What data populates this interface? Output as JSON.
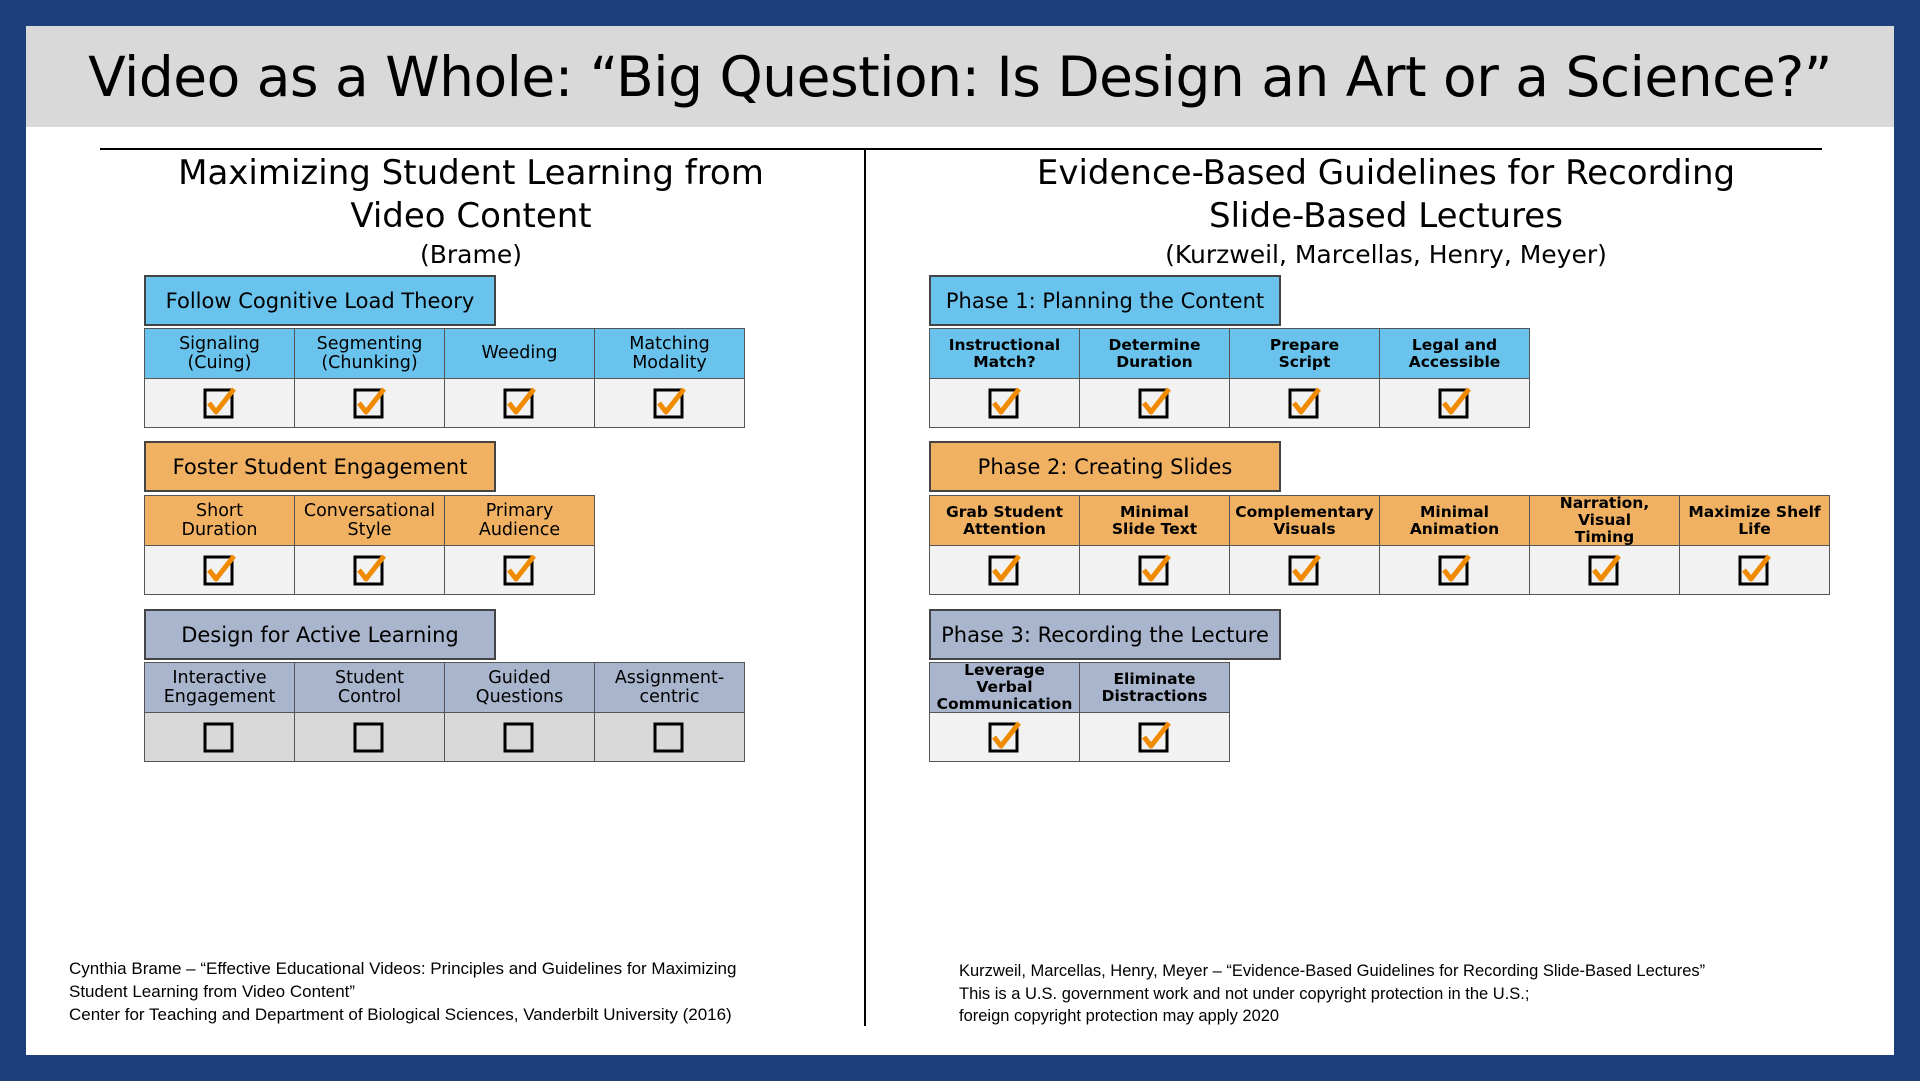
{
  "title": "Video as a Whole: “Big Question: Is Design an Art or a Science?”",
  "left": {
    "heading_line1": "Maximizing Student Learning from",
    "heading_line2": "Video Content",
    "author": "(Brame)",
    "sections": [
      {
        "label": "Follow Cognitive Load Theory",
        "color": "#6ac3ec",
        "items": [
          {
            "line1": "Signaling",
            "line2": "(Cuing)",
            "checked": true
          },
          {
            "line1": "Segmenting",
            "line2": "(Chunking)",
            "checked": true
          },
          {
            "line1": "Weeding",
            "line2": "",
            "checked": true
          },
          {
            "line1": "Matching",
            "line2": "Modality",
            "checked": true
          }
        ]
      },
      {
        "label": "Foster Student Engagement",
        "color": "#f0b163",
        "items": [
          {
            "line1": "Short",
            "line2": "Duration",
            "checked": true
          },
          {
            "line1": "Conversational",
            "line2": "Style",
            "checked": true
          },
          {
            "line1": "Primary",
            "line2": "Audience",
            "checked": true
          }
        ]
      },
      {
        "label": "Design for Active Learning",
        "color": "#a9b5cc",
        "items": [
          {
            "line1": "Interactive",
            "line2": "Engagement",
            "checked": false
          },
          {
            "line1": "Student",
            "line2": "Control",
            "checked": false
          },
          {
            "line1": "Guided",
            "line2": "Questions",
            "checked": false
          },
          {
            "line1": "Assignment-",
            "line2": "centric",
            "checked": false
          }
        ]
      }
    ],
    "footer": [
      "Cynthia Brame – “Effective Educational Videos: Principles and Guidelines for Maximizing",
      "Student Learning from Video Content”",
      "Center for Teaching and Department of Biological Sciences, Vanderbilt University (2016)"
    ]
  },
  "right": {
    "heading_line1": "Evidence-Based Guidelines for Recording",
    "heading_line2": "Slide-Based Lectures",
    "author": "(Kurzweil, Marcellas, Henry, Meyer)",
    "sections": [
      {
        "label": "Phase 1: Planning the Content",
        "color": "#6ac3ec",
        "items": [
          {
            "line1": "Instructional",
            "line2": "Match?",
            "checked": true
          },
          {
            "line1": "Determine",
            "line2": "Duration",
            "checked": true
          },
          {
            "line1": "Prepare",
            "line2": "Script",
            "checked": true
          },
          {
            "line1": "Legal and",
            "line2": "Accessible",
            "checked": true
          }
        ]
      },
      {
        "label": "Phase 2: Creating Slides",
        "color": "#f0b163",
        "items": [
          {
            "line1": "Grab Student",
            "line2": "Attention",
            "checked": true
          },
          {
            "line1": "Minimal",
            "line2": "Slide Text",
            "checked": true
          },
          {
            "line1": "Complementary",
            "line2": "Visuals",
            "checked": true
          },
          {
            "line1": "Minimal",
            "line2": "Animation",
            "checked": true
          },
          {
            "line1": "Narration, Visual",
            "line2": "Timing",
            "checked": true
          },
          {
            "line1": "Maximize Shelf",
            "line2": "Life",
            "checked": true
          }
        ]
      },
      {
        "label": "Phase 3: Recording the Lecture",
        "color": "#a9b5cc",
        "items": [
          {
            "line1": "Leverage Verbal",
            "line2": "Communication",
            "checked": true
          },
          {
            "line1": "Eliminate",
            "line2": "Distractions",
            "checked": true
          }
        ]
      }
    ],
    "footer": [
      "Kurzweil, Marcellas, Henry, Meyer – “Evidence-Based Guidelines for Recording Slide-Based Lectures”",
      "This is a U.S. government work and not under copyright protection in the U.S.;",
      "foreign copyright protection may apply 2020"
    ]
  },
  "icons": {
    "checked": "checkbox-checked-icon",
    "unchecked": "checkbox-empty-icon"
  },
  "colors": {
    "frame": "#1d3f7c",
    "checkmark": "#f08a00",
    "title_bar": "#d9d9d9"
  }
}
